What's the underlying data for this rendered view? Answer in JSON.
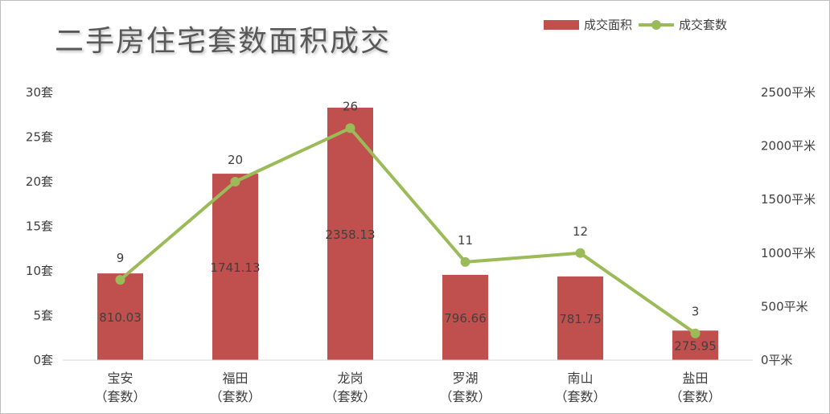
{
  "chart_data": {
    "type": "bar",
    "title": "二手房住宅套数面积成交",
    "categories": [
      [
        "宝安",
        "（套数）"
      ],
      [
        "福田",
        "（套数）"
      ],
      [
        "龙岗",
        "（套数）"
      ],
      [
        "罗湖",
        "（套数）"
      ],
      [
        "南山",
        "（套数）"
      ],
      [
        "盐田",
        "（套数）"
      ]
    ],
    "series": [
      {
        "name": "成交面积",
        "type": "bar",
        "axis": "right",
        "color": "#c0504d",
        "values": [
          810.03,
          1741.13,
          2358.13,
          796.66,
          781.75,
          275.95
        ],
        "labels": [
          "810.03",
          "1741.13",
          "2358.13",
          "796.66",
          "781.75",
          "275.95"
        ]
      },
      {
        "name": "成交套数",
        "type": "line",
        "axis": "left",
        "color": "#9bbb59",
        "values": [
          9,
          20,
          26,
          11,
          12,
          3
        ],
        "labels": [
          "9",
          "20",
          "26",
          "11",
          "12",
          "3"
        ]
      }
    ],
    "left_axis": {
      "min": 0,
      "max": 30,
      "ticks": [
        0,
        5,
        10,
        15,
        20,
        25,
        30
      ],
      "tick_labels": [
        "0套",
        "5套",
        "10套",
        "15套",
        "20套",
        "25套",
        "30套"
      ]
    },
    "right_axis": {
      "min": 0,
      "max": 2500,
      "ticks": [
        0,
        500,
        1000,
        1500,
        2000,
        2500
      ],
      "tick_labels": [
        "0平米",
        "500平米",
        "1000平米",
        "1500平米",
        "2000平米",
        "2500平米"
      ]
    },
    "grid": false,
    "legend_position": "top-right"
  }
}
